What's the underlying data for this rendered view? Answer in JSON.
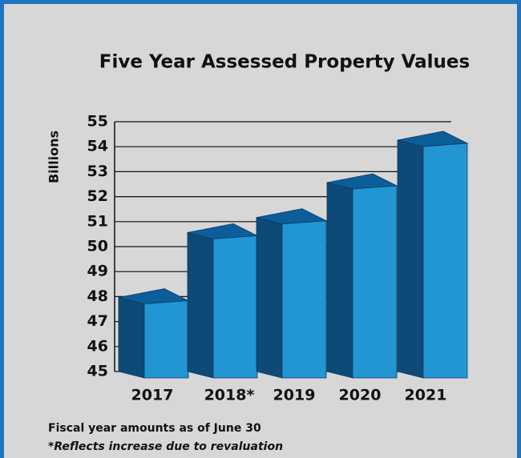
{
  "chart_data": {
    "type": "bar3d",
    "title": "Five Year Assessed Property Values",
    "y_label": "Billions",
    "categories": [
      "2017",
      "2018*",
      "2019",
      "2020",
      "2021"
    ],
    "values": [
      47.9,
      50.5,
      51.1,
      52.5,
      54.2
    ],
    "color": "#2196d3",
    "ylim": [
      45,
      55
    ],
    "yticks": [
      45,
      46,
      47,
      48,
      49,
      50,
      51,
      52,
      53,
      54,
      55
    ],
    "grid": true,
    "notes": [
      "Fiscal year amounts as of June 30",
      "*Reflects increase due to revaluation"
    ]
  }
}
